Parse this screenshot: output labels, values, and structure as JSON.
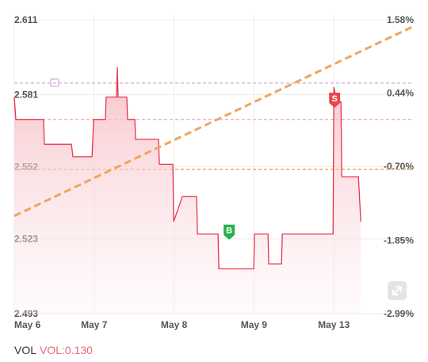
{
  "chart_data": {
    "type": "line",
    "x": [
      0,
      0.02,
      0.367,
      0.377,
      0.715,
      0.734,
      0.973,
      0.993,
      1.141,
      1.151,
      1.28,
      1.29,
      1.3,
      1.409,
      1.419,
      1.509,
      1.519,
      1.806,
      1.816,
      1.985,
      1.995,
      2.104,
      2.283,
      2.293,
      2.551,
      2.561,
      2.998,
      3.007,
      3.176,
      3.186,
      3.345,
      3.355,
      3.99,
      4.0,
      4.04,
      4.089,
      4.099,
      4.308,
      4.337
    ],
    "series": [
      {
        "color": "#e8344e",
        "values": [
          2.58,
          2.571,
          2.571,
          2.561,
          2.561,
          2.556,
          2.556,
          2.571,
          2.571,
          2.58,
          2.58,
          2.592,
          2.58,
          2.58,
          2.571,
          2.571,
          2.563,
          2.563,
          2.553,
          2.553,
          2.53,
          2.54,
          2.54,
          2.525,
          2.525,
          2.511,
          2.511,
          2.525,
          2.525,
          2.513,
          2.513,
          2.525,
          2.525,
          2.584,
          2.578,
          2.578,
          2.548,
          2.548,
          2.53
        ]
      },
      {
        "color": "#f0a45e",
        "axis": "y2",
        "x": [
          0,
          5
        ],
        "values": [
          -1.47,
          1.48
        ]
      }
    ],
    "xlim": [
      0,
      5
    ],
    "xticks": [
      {
        "value": 0,
        "label": "May 6"
      },
      {
        "value": 1,
        "label": "May 7"
      },
      {
        "value": 2,
        "label": "May 8"
      },
      {
        "value": 3,
        "label": "May 9"
      },
      {
        "value": 4,
        "label": "May 13"
      }
    ],
    "ylim": [
      2.493,
      2.611
    ],
    "yticks": [
      2.611,
      2.581,
      2.552,
      2.523,
      2.493
    ],
    "y2lim": [
      -2.99,
      1.58
    ],
    "y2ticks": [
      {
        "value": 1.58,
        "label": "1.58%"
      },
      {
        "value": 0.44,
        "label": "0.44%"
      },
      {
        "value": -0.7,
        "label": "-0.70%"
      },
      {
        "value": -1.85,
        "label": "-1.85%"
      },
      {
        "value": -2.99,
        "label": "-2.99%"
      }
    ],
    "grid": true,
    "levels": [
      {
        "value": 2.5856,
        "color": "#d9a6d8"
      },
      {
        "value": 2.571,
        "color": "#e8a8b8"
      },
      {
        "value": 2.551,
        "color": "#e89a3c"
      }
    ],
    "annotations": [
      {
        "label": "B",
        "x": 2.69,
        "y": 2.523,
        "color": "#27b04a"
      },
      {
        "label": "S",
        "x": 4.01,
        "y": 2.576,
        "color": "#e8464e"
      }
    ],
    "footer": {
      "label": "VOL",
      "value": "VOL:0.130"
    }
  }
}
